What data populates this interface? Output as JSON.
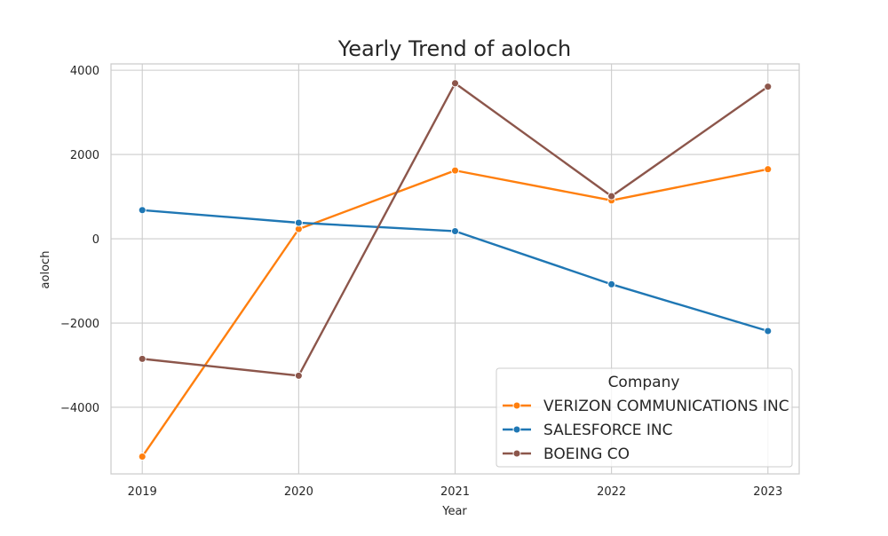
{
  "chart_data": {
    "type": "line",
    "title": "Yearly Trend of aoloch",
    "xlabel": "Year",
    "ylabel": "aoloch",
    "x": [
      "2019",
      "2020",
      "2021",
      "2022",
      "2023"
    ],
    "xlim": [
      2018.8,
      2023.2
    ],
    "ylim": [
      -5580,
      4150
    ],
    "yticks": [
      4000,
      2000,
      0,
      -2000,
      -4000
    ],
    "ytick_labels": [
      "4000",
      "2000",
      "0",
      "−2000",
      "−4000"
    ],
    "grid": true,
    "legend": {
      "title": "Company",
      "position": "lower-right"
    },
    "series": [
      {
        "name": "VERIZON COMMUNICATIONS INC",
        "color": "#ff7f0e",
        "values": [
          -5170,
          230,
          1620,
          910,
          1650
        ]
      },
      {
        "name": "SALESFORCE INC",
        "color": "#1f77b4",
        "values": [
          680,
          380,
          180,
          -1080,
          -2190
        ]
      },
      {
        "name": "BOEING CO",
        "color": "#8c564b",
        "values": [
          -2850,
          -3250,
          3690,
          1010,
          3610
        ]
      }
    ]
  }
}
